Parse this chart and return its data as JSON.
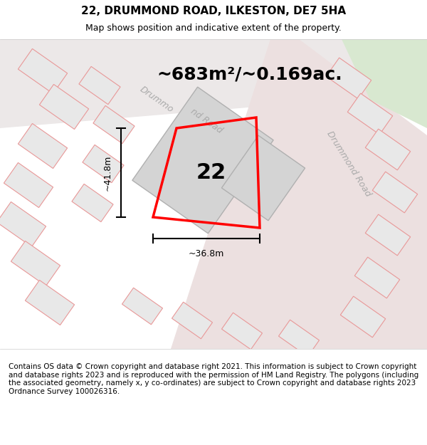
{
  "title": "22, DRUMMOND ROAD, ILKESTON, DE7 5HA",
  "subtitle": "Map shows position and indicative extent of the property.",
  "area_text": "~683m²/~0.169ac.",
  "label_number": "22",
  "dim_width": "~36.8m",
  "dim_height": "~41.8m",
  "footer": "Contains OS data © Crown copyright and database right 2021. This information is subject to Crown copyright and database rights 2023 and is reproduced with the permission of HM Land Registry. The polygons (including the associated geometry, namely x, y co-ordinates) are subject to Crown copyright and database rights 2023 Ordnance Survey 100026316.",
  "bg_color": "#f5f0f0",
  "map_bg": "#f5f0f0",
  "road_color": "#f0c8c8",
  "road_stroke": "#e89898",
  "property_outline_color": "#ff0000",
  "building_fill": "#d8d8d8",
  "building_stroke": "#c0c0c0",
  "green_area_color": "#d8e8d0",
  "road_label_color": "#aaaaaa",
  "title_fontsize": 11,
  "subtitle_fontsize": 9,
  "area_fontsize": 18,
  "number_fontsize": 22,
  "footer_fontsize": 7.5
}
